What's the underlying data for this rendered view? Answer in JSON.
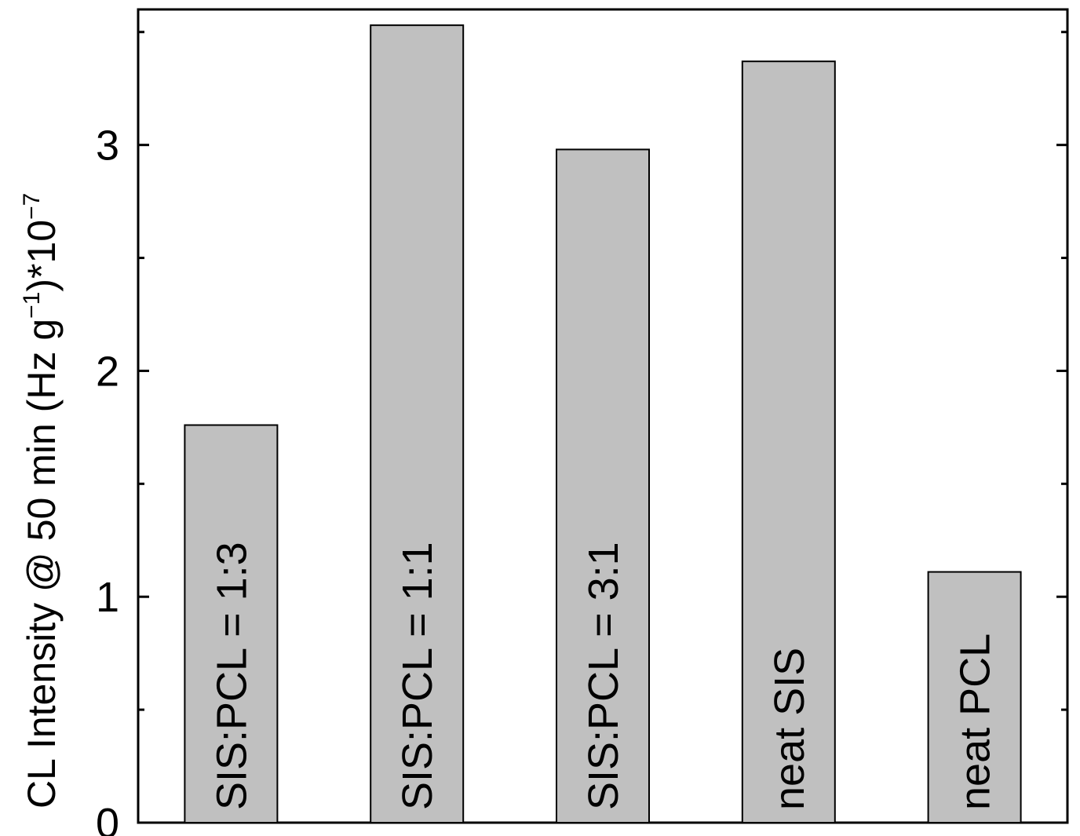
{
  "chart_data": {
    "type": "bar",
    "title": "",
    "xlabel": "",
    "ylabel": {
      "parts": [
        {
          "text": "CL Intensity @ 50 min (Hz g",
          "sup": false
        },
        {
          "text": "−1",
          "sup": true
        },
        {
          "text": ")*10",
          "sup": false
        },
        {
          "text": "−7",
          "sup": true
        }
      ]
    },
    "categories": [
      "SIS:PCL = 1:3",
      "SIS:PCL = 1:1",
      "SIS:PCL = 3:1",
      "neat SIS",
      "neat PCL"
    ],
    "values": [
      1.76,
      3.53,
      2.98,
      3.37,
      1.11
    ],
    "ylim": [
      0,
      3.6
    ],
    "yticks": [
      0,
      1,
      2,
      3
    ],
    "yticks_minor": [
      0.5,
      1.5,
      2.5,
      3.5
    ],
    "ytick_labels": [
      "0",
      "1",
      "2",
      "3"
    ],
    "bar_color": "#c0c0c0",
    "grid": false,
    "legend": "none"
  }
}
